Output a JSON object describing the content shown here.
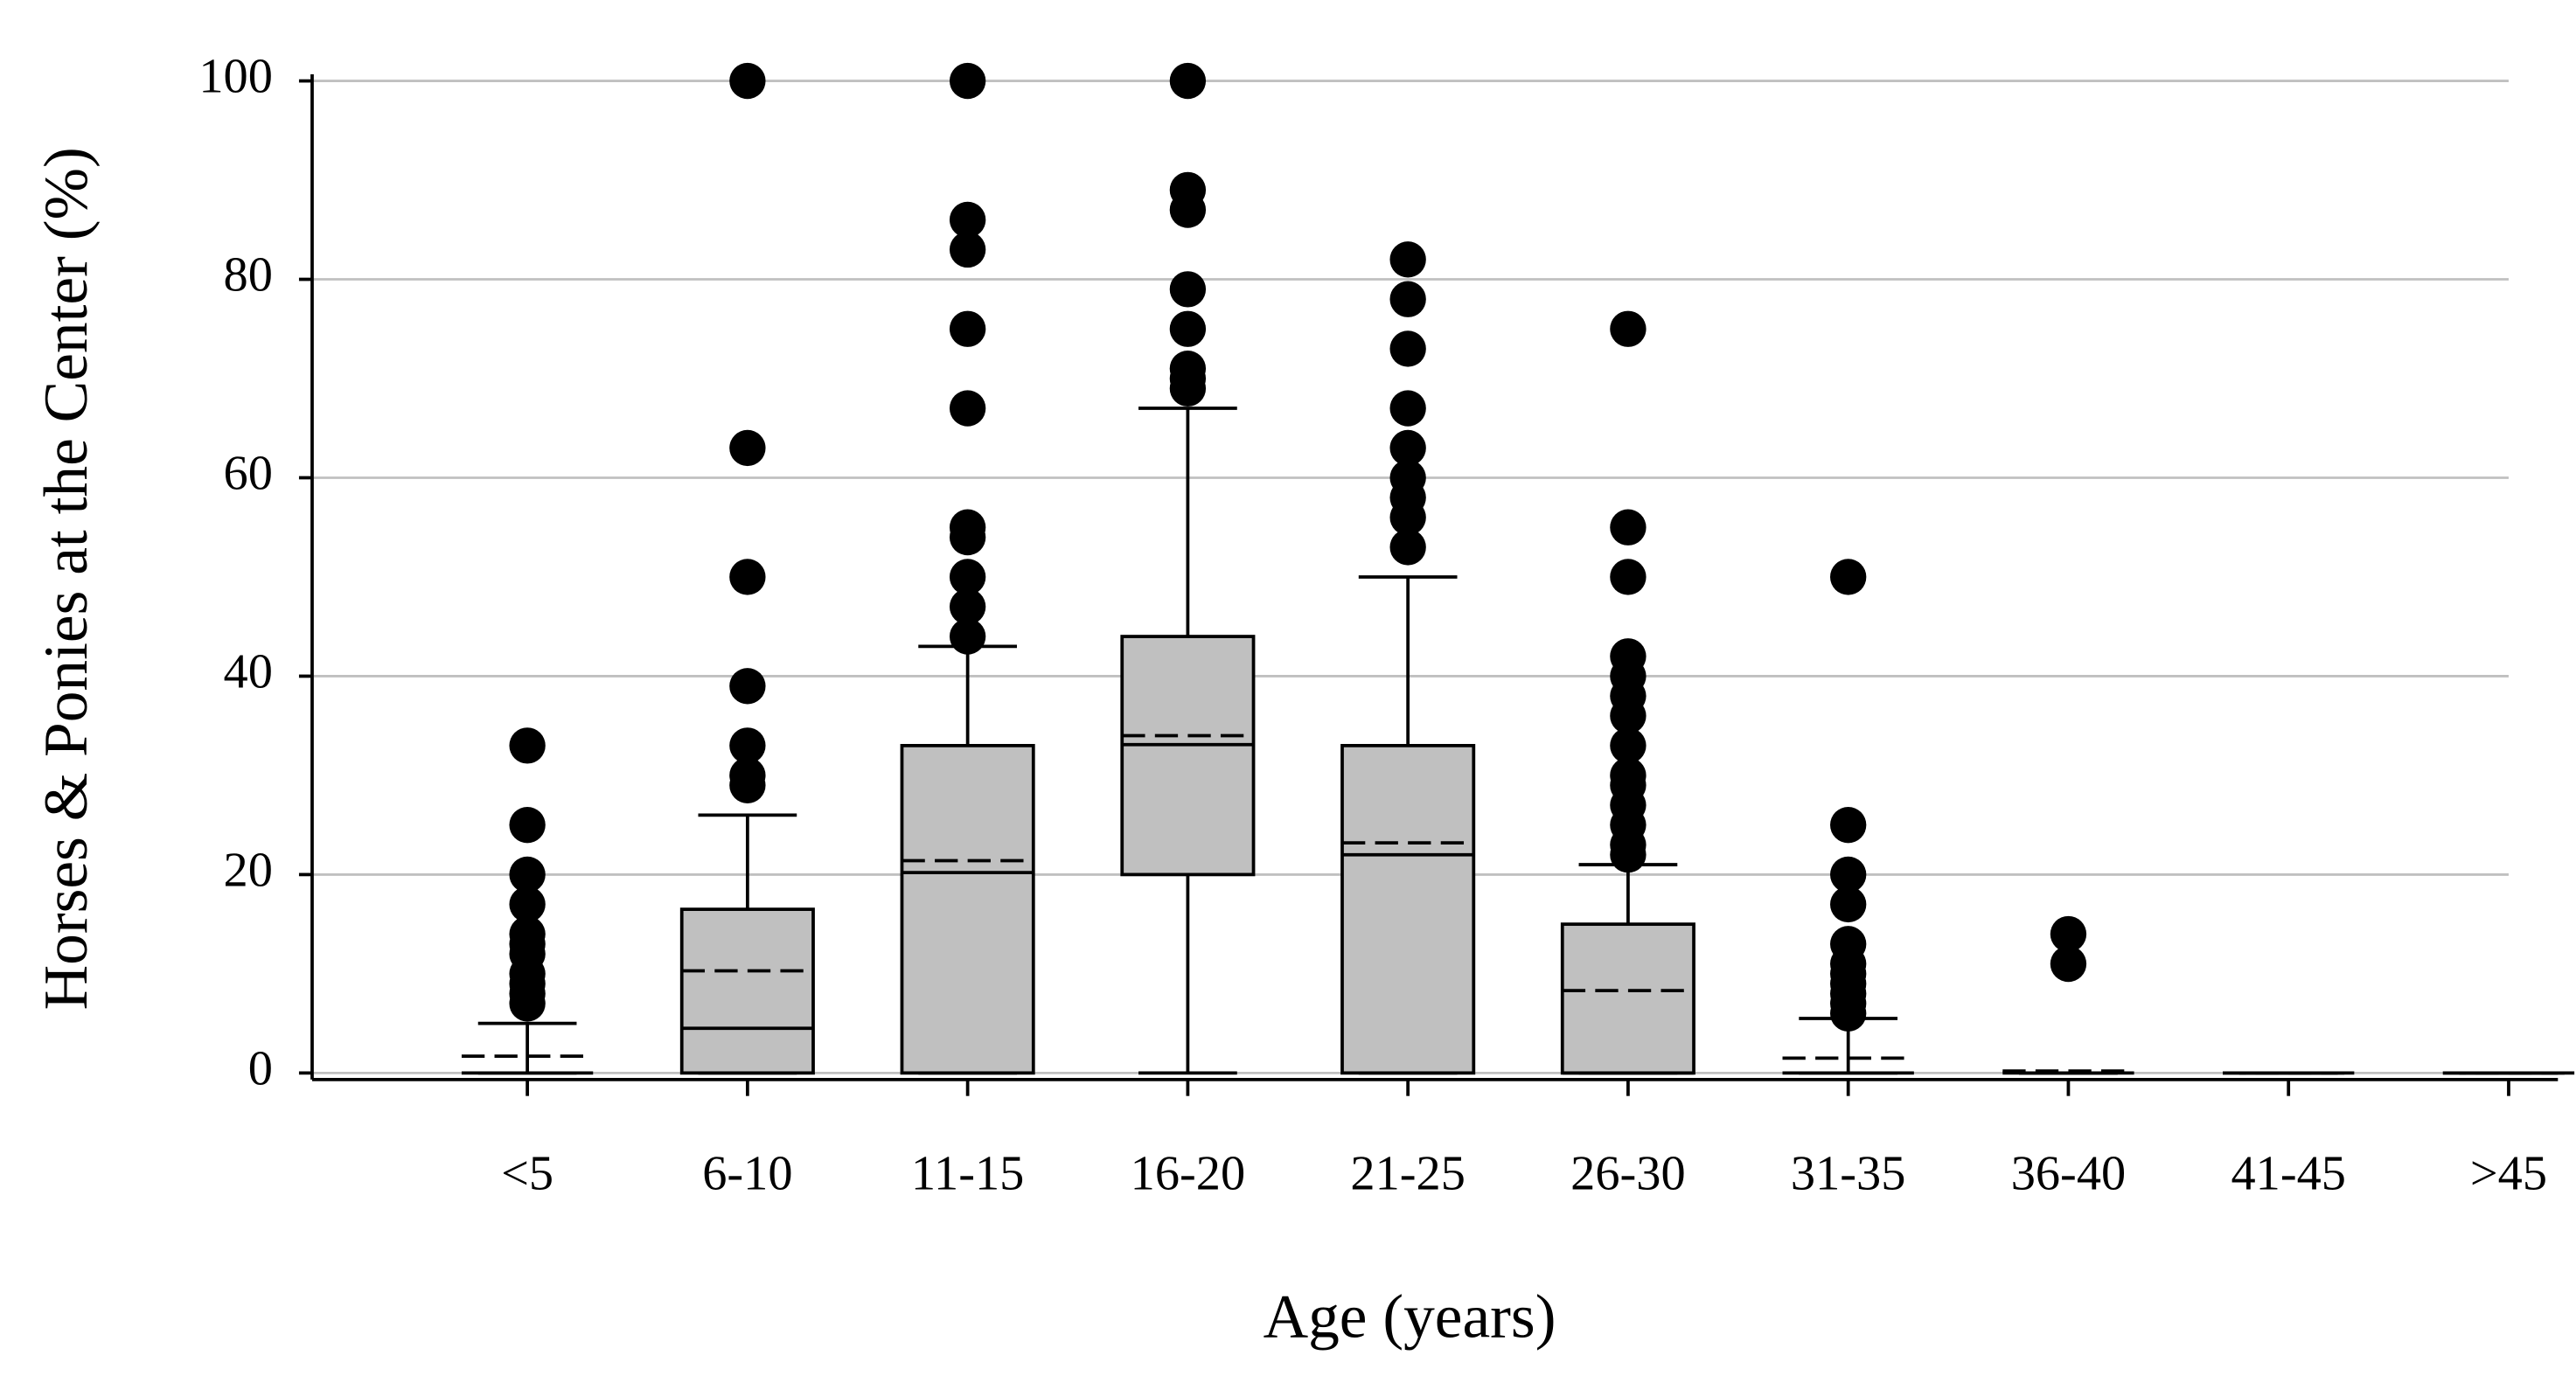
{
  "chart_data": {
    "type": "box",
    "x_label": "Age (years)",
    "y_label": "Horses & Ponies at the Center (%)",
    "categories": [
      "<5",
      "6-10",
      "11-15",
      "16-20",
      "21-25",
      "26-30",
      "31-35",
      "36-40",
      "41-45",
      ">45"
    ],
    "boxes": [
      {
        "min": 0,
        "q1": 0,
        "median": 0,
        "q3": 0,
        "max": 5,
        "mean": 1.7,
        "outliers": [
          33,
          25,
          20,
          17,
          14,
          13,
          12,
          10,
          9,
          8,
          7
        ]
      },
      {
        "min": 0,
        "q1": 0,
        "median": 4.5,
        "q3": 16.5,
        "max": 26,
        "mean": 10.3,
        "outliers": [
          100,
          63,
          50,
          39,
          33,
          30,
          29
        ]
      },
      {
        "min": 0,
        "q1": 0,
        "median": 20.2,
        "q3": 33,
        "max": 43,
        "mean": 21.4,
        "outliers": [
          100,
          86,
          83,
          75,
          67,
          55,
          54,
          50,
          47,
          44
        ]
      },
      {
        "min": 0,
        "q1": 20,
        "median": 33.1,
        "q3": 44,
        "max": 67,
        "mean": 34,
        "outliers": [
          100,
          89,
          87,
          79,
          75,
          71,
          70,
          69
        ]
      },
      {
        "min": 0,
        "q1": 0,
        "median": 22,
        "q3": 33,
        "max": 50,
        "mean": 23.2,
        "outliers": [
          82,
          78,
          73,
          67,
          63,
          60,
          58,
          56,
          53
        ]
      },
      {
        "min": 0,
        "q1": 0,
        "median": 0,
        "q3": 15,
        "max": 21,
        "mean": 8.3,
        "outliers": [
          75,
          55,
          50,
          42,
          40,
          38,
          36,
          33,
          30,
          29,
          27,
          25,
          23,
          22
        ]
      },
      {
        "min": 0,
        "q1": 0,
        "median": 0,
        "q3": 0,
        "max": 5.5,
        "mean": 1.5,
        "outliers": [
          50,
          25,
          20,
          17,
          13,
          11,
          10,
          9,
          8,
          7,
          6
        ]
      },
      {
        "min": 0,
        "q1": 0,
        "median": 0,
        "q3": 0,
        "max": 0,
        "mean": 0.2,
        "outliers": [
          14,
          11
        ]
      },
      {
        "min": 0,
        "q1": 0,
        "median": 0,
        "q3": 0,
        "max": 0,
        "mean": 0,
        "outliers": []
      },
      {
        "min": 0,
        "q1": 0,
        "median": 0,
        "q3": 0,
        "max": 0,
        "mean": 0,
        "outliers": []
      }
    ],
    "box_color": "#c0c0c0",
    "ylim": [
      0,
      100
    ],
    "yticks": [
      0,
      20,
      40,
      60,
      80,
      100
    ],
    "grid": true
  }
}
